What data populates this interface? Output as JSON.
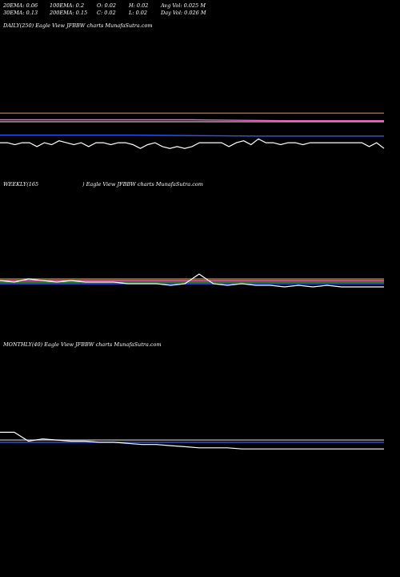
{
  "header": {
    "row1": [
      "20EMA: 0.06",
      "100EMA: 0.2",
      "O: 0.02",
      "H: 0.02",
      "Avg Vol: 0.025  M"
    ],
    "row2": [
      "30EMA: 0.13",
      "200EMA: 0.15",
      "C: 0.02",
      "L: 0.02",
      "Day Vol: 0.026  M"
    ]
  },
  "panels": {
    "daily": {
      "label": "DAILY(250) Eagle   View  JFBBW charts MunafaSutra.com"
    },
    "weekly": {
      "label_left": "WEEKLY(165",
      "label_right": ") Eagle   View  JFBBW charts MunafaSutra.com"
    },
    "monthly": {
      "label": "MONTHLY(40) Eagle   View  JFBBW charts MunafaSutra.com"
    }
  },
  "colors": {
    "background": "#000000",
    "price": "#ffffff",
    "ema_blue": "#3355ff",
    "ema_pink": "#ff66cc",
    "ema_brown": "#b36b3a",
    "ema_gray": "#aaaaaa",
    "ema_green": "#33aa33"
  },
  "chart_data": [
    {
      "type": "line",
      "name": "DAILY",
      "series": [
        {
          "color": "#b36b3a",
          "values": [
            0.205,
            0.205
          ]
        },
        {
          "color": "#ff66cc",
          "values": [
            0.17,
            0.17,
            0.17,
            0.165,
            0.165
          ]
        },
        {
          "color": "#aaaaaa",
          "values": [
            0.16,
            0.16
          ]
        },
        {
          "color": "#3355ff",
          "values": [
            0.09,
            0.09,
            0.085,
            0.085
          ]
        },
        {
          "color": "#ffffff",
          "values": [
            0.05,
            0.05,
            0.04,
            0.05,
            0.05,
            0.03,
            0.05,
            0.04,
            0.06,
            0.05,
            0.04,
            0.05,
            0.03,
            0.05,
            0.05,
            0.04,
            0.05,
            0.05,
            0.04,
            0.02,
            0.04,
            0.05,
            0.03,
            0.02,
            0.03,
            0.02,
            0.03,
            0.05,
            0.05,
            0.05,
            0.05,
            0.03,
            0.05,
            0.06,
            0.04,
            0.07,
            0.05,
            0.05,
            0.04,
            0.05,
            0.05,
            0.04,
            0.05,
            0.05,
            0.05,
            0.05,
            0.05,
            0.05,
            0.05,
            0.05,
            0.03,
            0.05,
            0.02
          ]
        }
      ]
    },
    {
      "type": "line",
      "name": "WEEKLY",
      "series": [
        {
          "color": "#b36b3a",
          "values": [
            0.06,
            0.06
          ]
        },
        {
          "color": "#ff66cc",
          "values": [
            0.05,
            0.05
          ]
        },
        {
          "color": "#3355ff",
          "values": [
            0.03,
            0.03
          ]
        },
        {
          "color": "#33aa33",
          "values": [
            0.04,
            0.04
          ]
        },
        {
          "color": "#ffffff",
          "values": [
            0.05,
            0.04,
            0.06,
            0.05,
            0.04,
            0.05,
            0.04,
            0.04,
            0.04,
            0.03,
            0.03,
            0.03,
            0.02,
            0.03,
            0.09,
            0.03,
            0.02,
            0.03,
            0.02,
            0.02,
            0.01,
            0.02,
            0.01,
            0.02,
            0.01,
            0.01,
            0.01,
            0.01
          ]
        }
      ]
    },
    {
      "type": "line",
      "name": "MONTHLY",
      "series": [
        {
          "color": "#aaaaaa",
          "values": [
            0.13,
            0.13
          ]
        },
        {
          "color": "#3355ff",
          "values": [
            0.11,
            0.11
          ]
        },
        {
          "color": "#ffffff",
          "values": [
            0.2,
            0.2,
            0.12,
            0.14,
            0.13,
            0.12,
            0.12,
            0.11,
            0.11,
            0.1,
            0.09,
            0.09,
            0.08,
            0.07,
            0.06,
            0.06,
            0.06,
            0.05,
            0.05,
            0.05,
            0.05,
            0.05,
            0.05,
            0.05,
            0.05,
            0.05,
            0.05,
            0.05
          ]
        }
      ]
    }
  ]
}
